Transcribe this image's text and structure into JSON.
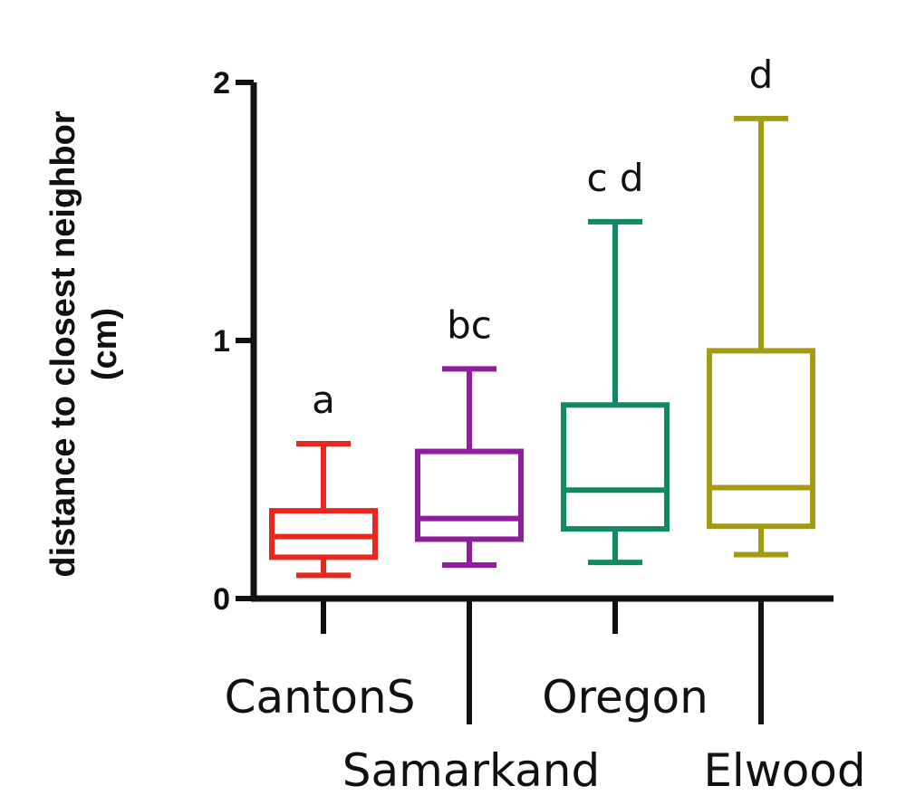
{
  "chart_data": {
    "type": "box",
    "ylabel_lines": [
      "distance to closest neighbor",
      "(cm)"
    ],
    "ylim": [
      0,
      2
    ],
    "yticks": [
      "0",
      "1",
      "2"
    ],
    "grid": false,
    "categories": [
      "CantonS",
      "Samarkand",
      "Oregon",
      "Elwood"
    ],
    "boxes": [
      {
        "name": "CantonS",
        "color": "#e8281e",
        "whisker_low": 0.09,
        "q1": 0.16,
        "median": 0.24,
        "q3": 0.34,
        "whisker_high": 0.6,
        "significance": "a"
      },
      {
        "name": "Samarkand",
        "color": "#8e1e9e",
        "whisker_low": 0.13,
        "q1": 0.23,
        "median": 0.31,
        "q3": 0.57,
        "whisker_high": 0.89,
        "significance": "bc"
      },
      {
        "name": "Oregon",
        "color": "#108a63",
        "whisker_low": 0.14,
        "q1": 0.27,
        "median": 0.42,
        "q3": 0.75,
        "whisker_high": 1.46,
        "significance": "c d"
      },
      {
        "name": "Elwood",
        "color": "#a39b12",
        "whisker_low": 0.17,
        "q1": 0.28,
        "median": 0.43,
        "q3": 0.96,
        "whisker_high": 1.86,
        "significance": "d"
      }
    ]
  }
}
